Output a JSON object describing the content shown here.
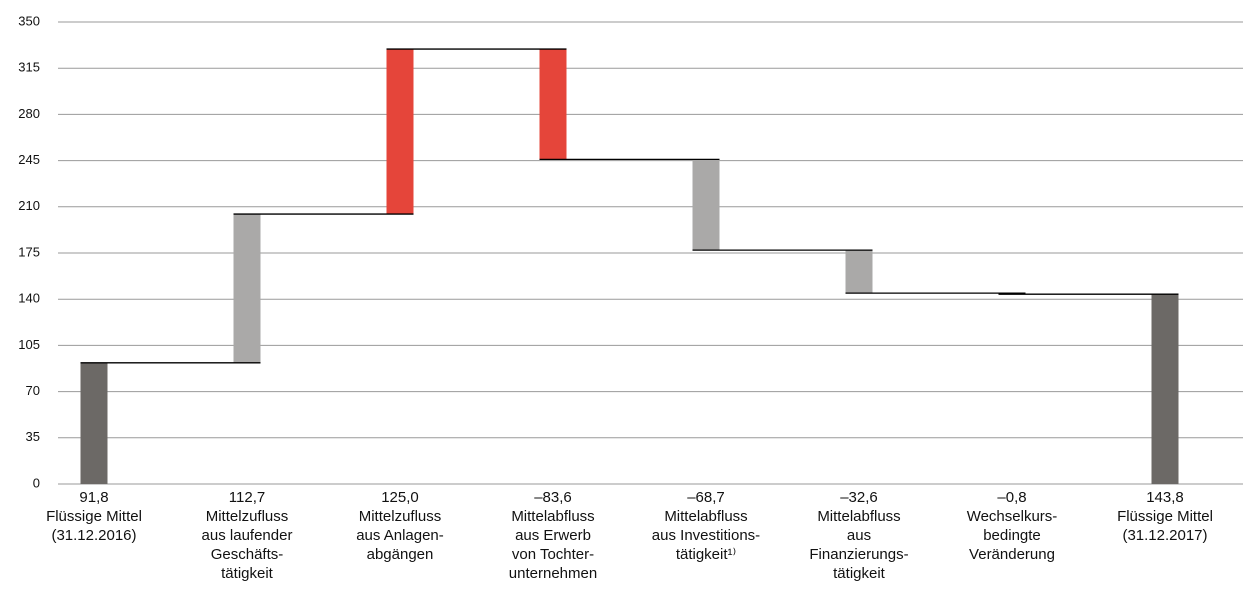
{
  "chart_data": {
    "type": "waterfall",
    "categories": [
      [
        "Flüssige Mittel",
        "(31.12.2016)"
      ],
      [
        "Mittelzufluss",
        "aus laufender",
        "Geschäfts-",
        "tätigkeit"
      ],
      [
        "Mittelzufluss",
        "aus Anlagen-",
        "abgängen"
      ],
      [
        "Mittelabfluss",
        "aus Erwerb",
        "von Tochter-",
        "unternehmen"
      ],
      [
        "Mittelabfluss",
        "aus Investitions-",
        "tätigkeit¹⁾"
      ],
      [
        "Mittelabfluss",
        "aus",
        "Finanzierungs-",
        "tätigkeit"
      ],
      [
        "Wechselkurs-",
        "bedingte",
        "Veränderung"
      ],
      [
        "Flüssige Mittel",
        "(31.12.2017)"
      ]
    ],
    "values": [
      91.8,
      112.7,
      125.0,
      -83.6,
      -68.7,
      -32.6,
      -0.8,
      143.8
    ],
    "value_labels": [
      "91,8",
      "112,7",
      "125,0",
      "–83,6",
      "–68,7",
      "–32,6",
      "–0,8",
      "143,8"
    ],
    "measures": [
      "absolute",
      "relative",
      "relative",
      "relative",
      "relative",
      "relative",
      "relative",
      "absolute"
    ],
    "colors": [
      "#6c6966",
      "#aaa9a8",
      "#e5453a",
      "#e5453a",
      "#aaa9a8",
      "#aaa9a8",
      "#aaa9a8",
      "#6c6966"
    ],
    "ylim": [
      0,
      350
    ],
    "yticks": [
      0,
      35,
      70,
      105,
      140,
      175,
      210,
      245,
      280,
      315,
      350
    ],
    "grid": true
  }
}
